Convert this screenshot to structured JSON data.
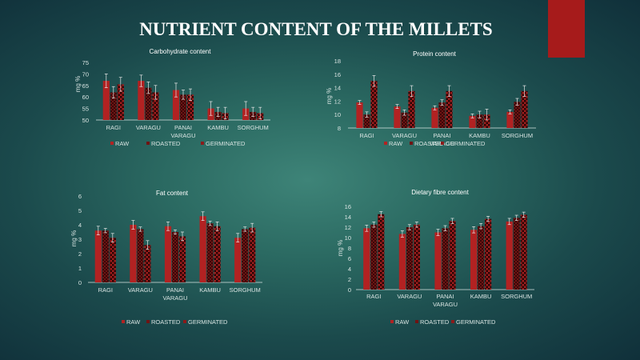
{
  "page": {
    "title": "NUTRIENT CONTENT OF THE MILLETS",
    "colors": {
      "accent": "#a61b1b",
      "raw": "#b22222",
      "roasted": "#6e1414",
      "germinated": "#8b1a1a",
      "axis": "#d8e4e2",
      "text": "#ffffff"
    }
  },
  "chart_data": [
    {
      "type": "bar",
      "title": "Carbohydrate content",
      "ylabel": "mg %",
      "ylim": [
        50,
        75
      ],
      "yticks": [
        50,
        55,
        60,
        65,
        70,
        75
      ],
      "categories": [
        "RAGI",
        "VARAGU",
        "PANAI VARAGU",
        "KAMBU",
        "SORGHUM"
      ],
      "series": [
        {
          "name": "RAW",
          "values": [
            67,
            67,
            63,
            55,
            55
          ],
          "errors": [
            3,
            2.5,
            3,
            3,
            3
          ]
        },
        {
          "name": "ROASTED",
          "values": [
            62,
            64,
            61,
            53.5,
            53.5
          ],
          "errors": [
            2.5,
            2.5,
            2,
            2,
            2
          ]
        },
        {
          "name": "GERMINATED",
          "values": [
            65.5,
            62,
            61,
            53,
            53
          ],
          "errors": [
            3,
            3,
            2.5,
            2.5,
            2.5
          ]
        }
      ],
      "legend": "bottom",
      "grid": false
    },
    {
      "type": "bar",
      "title": "Protein content",
      "ylabel": "mg %",
      "ylim": [
        8,
        18
      ],
      "yticks": [
        8,
        10,
        12,
        14,
        16,
        18
      ],
      "categories": [
        "RAGI",
        "VARAGU",
        "PANAI VARAGU",
        "KAMBU",
        "SORGHUM"
      ],
      "series": [
        {
          "name": "RAW",
          "values": [
            11.8,
            11.2,
            11,
            9.8,
            10.4
          ],
          "errors": [
            0.3,
            0.3,
            0.3,
            0.3,
            0.3
          ]
        },
        {
          "name": "ROASTED",
          "values": [
            10,
            10.3,
            11.8,
            10,
            11.9
          ],
          "errors": [
            0.4,
            0.4,
            0.4,
            0.5,
            0.5
          ]
        },
        {
          "name": "GERMINATED",
          "values": [
            15,
            13.5,
            13.5,
            10,
            13.5
          ],
          "errors": [
            0.8,
            0.8,
            0.8,
            0.8,
            0.8
          ]
        }
      ],
      "legend": "bottom",
      "grid": false
    },
    {
      "type": "bar",
      "title": "Fat content",
      "ylabel": "mg %",
      "ylim": [
        0,
        6
      ],
      "yticks": [
        0,
        1,
        2,
        3,
        4,
        5,
        6
      ],
      "categories": [
        "RAGI",
        "VARAGU",
        "PANAI VARAGU",
        "KAMBU",
        "SORGHUM"
      ],
      "series": [
        {
          "name": "RAW",
          "values": [
            3.6,
            4.0,
            3.9,
            4.6,
            3.1
          ],
          "errors": [
            0.3,
            0.3,
            0.3,
            0.3,
            0.3
          ]
        },
        {
          "name": "ROASTED",
          "values": [
            3.6,
            3.7,
            3.5,
            4.1,
            3.7
          ],
          "errors": [
            0.15,
            0.15,
            0.15,
            0.15,
            0.15
          ]
        },
        {
          "name": "GERMINATED",
          "values": [
            3.1,
            2.6,
            3.2,
            3.9,
            3.8
          ],
          "errors": [
            0.3,
            0.3,
            0.3,
            0.3,
            0.3
          ]
        }
      ],
      "legend": "bottom",
      "grid": false
    },
    {
      "type": "bar",
      "title": "Dietary fibre content",
      "ylabel": "mg %",
      "ylim": [
        0,
        16
      ],
      "yticks": [
        0,
        2,
        4,
        6,
        8,
        10,
        12,
        14,
        16
      ],
      "categories": [
        "RAGI",
        "VARAGU",
        "PANAI VARAGU",
        "KAMBU",
        "SORGHUM"
      ],
      "series": [
        {
          "name": "RAW",
          "values": [
            11.8,
            10.7,
            11,
            11.5,
            13.1
          ],
          "errors": [
            0.6,
            0.6,
            0.6,
            0.6,
            0.6
          ]
        },
        {
          "name": "ROASTED",
          "values": [
            12.5,
            12,
            11.8,
            12.2,
            13.8
          ],
          "errors": [
            0.5,
            0.5,
            0.5,
            0.5,
            0.5
          ]
        },
        {
          "name": "GERMINATED",
          "values": [
            14.5,
            12.5,
            13.2,
            13.6,
            14.4
          ],
          "errors": [
            0.5,
            0.5,
            0.5,
            0.5,
            0.5
          ]
        }
      ],
      "legend": "bottom",
      "grid": false
    }
  ]
}
